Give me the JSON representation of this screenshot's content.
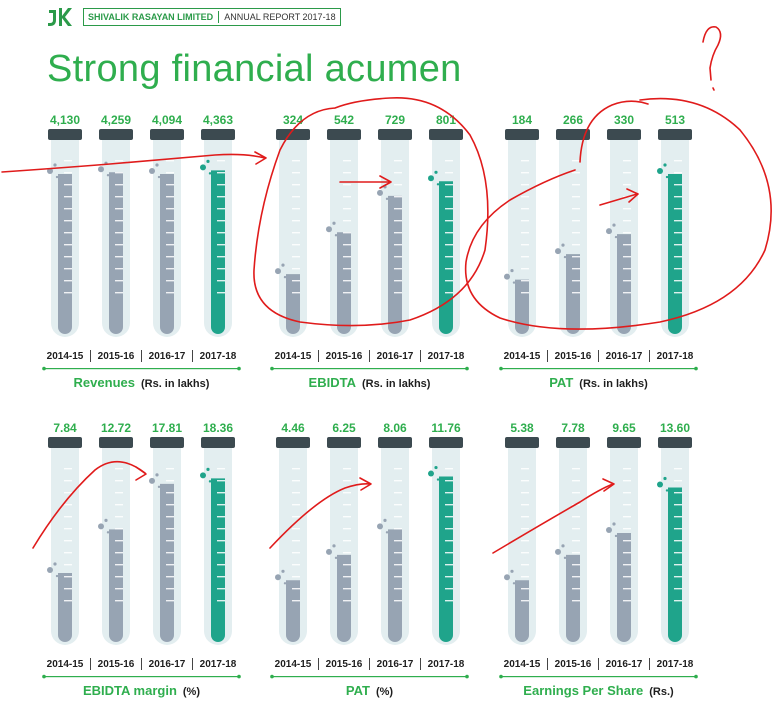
{
  "header": {
    "company": "SHIVALIK RASAYAN LIMITED",
    "report": "ANNUAL REPORT 2017-18",
    "logo_icon": "company-logo-icon"
  },
  "page_title": "Strong financial acumen",
  "colors": {
    "accent_green": "#2fae4e",
    "highlight_teal": "#1fa48b",
    "past_grey": "#97a4b3",
    "tube_glass": "#e3eef0",
    "cap": "#3c4a50",
    "annotation_red": "#e01b1b"
  },
  "chart_data": [
    {
      "type": "bar",
      "title": "Revenues",
      "unit": "(Rs. in lakhs)",
      "categories": [
        "2014-15",
        "2015-16",
        "2016-17",
        "2017-18"
      ],
      "value_labels": [
        "4,130",
        "4,259",
        "4,094",
        "4,363"
      ],
      "values": [
        4130,
        4259,
        4094,
        4363
      ],
      "fill_fraction": [
        0.89,
        0.9,
        0.89,
        0.91
      ]
    },
    {
      "type": "bar",
      "title": "EBIDTA",
      "unit": "(Rs. in lakhs)",
      "categories": [
        "2014-15",
        "2015-16",
        "2016-17",
        "2017-18"
      ],
      "value_labels": [
        "324",
        "542",
        "729",
        "801"
      ],
      "values": [
        324,
        542,
        729,
        801
      ],
      "fill_fraction": [
        0.34,
        0.57,
        0.77,
        0.85
      ]
    },
    {
      "type": "bar",
      "title": "PAT",
      "unit": "(Rs. in lakhs)",
      "categories": [
        "2014-15",
        "2015-16",
        "2016-17",
        "2017-18"
      ],
      "value_labels": [
        "184",
        "266",
        "330",
        "513"
      ],
      "values": [
        184,
        266,
        330,
        513
      ],
      "fill_fraction": [
        0.31,
        0.45,
        0.56,
        0.89
      ]
    },
    {
      "type": "bar",
      "title": "EBIDTA margin",
      "unit": "(%)",
      "categories": [
        "2014-15",
        "2015-16",
        "2016-17",
        "2017-18"
      ],
      "value_labels": [
        "7.84",
        "12.72",
        "17.81",
        "18.36"
      ],
      "values": [
        7.84,
        12.72,
        17.81,
        18.36
      ],
      "fill_fraction": [
        0.39,
        0.63,
        0.88,
        0.91
      ]
    },
    {
      "type": "bar",
      "title": "PAT",
      "unit": "(%)",
      "categories": [
        "2014-15",
        "2015-16",
        "2016-17",
        "2017-18"
      ],
      "value_labels": [
        "4.46",
        "6.25",
        "8.06",
        "11.76"
      ],
      "values": [
        4.46,
        6.25,
        8.06,
        11.76
      ],
      "fill_fraction": [
        0.35,
        0.49,
        0.63,
        0.92
      ]
    },
    {
      "type": "bar",
      "title": "Earnings Per Share",
      "unit": "(Rs.)",
      "categories": [
        "2014-15",
        "2015-16",
        "2016-17",
        "2017-18"
      ],
      "value_labels": [
        "5.38",
        "7.78",
        "9.65",
        "13.60"
      ],
      "values": [
        5.38,
        7.78,
        9.65,
        13.6
      ],
      "fill_fraction": [
        0.35,
        0.49,
        0.61,
        0.86
      ]
    }
  ]
}
